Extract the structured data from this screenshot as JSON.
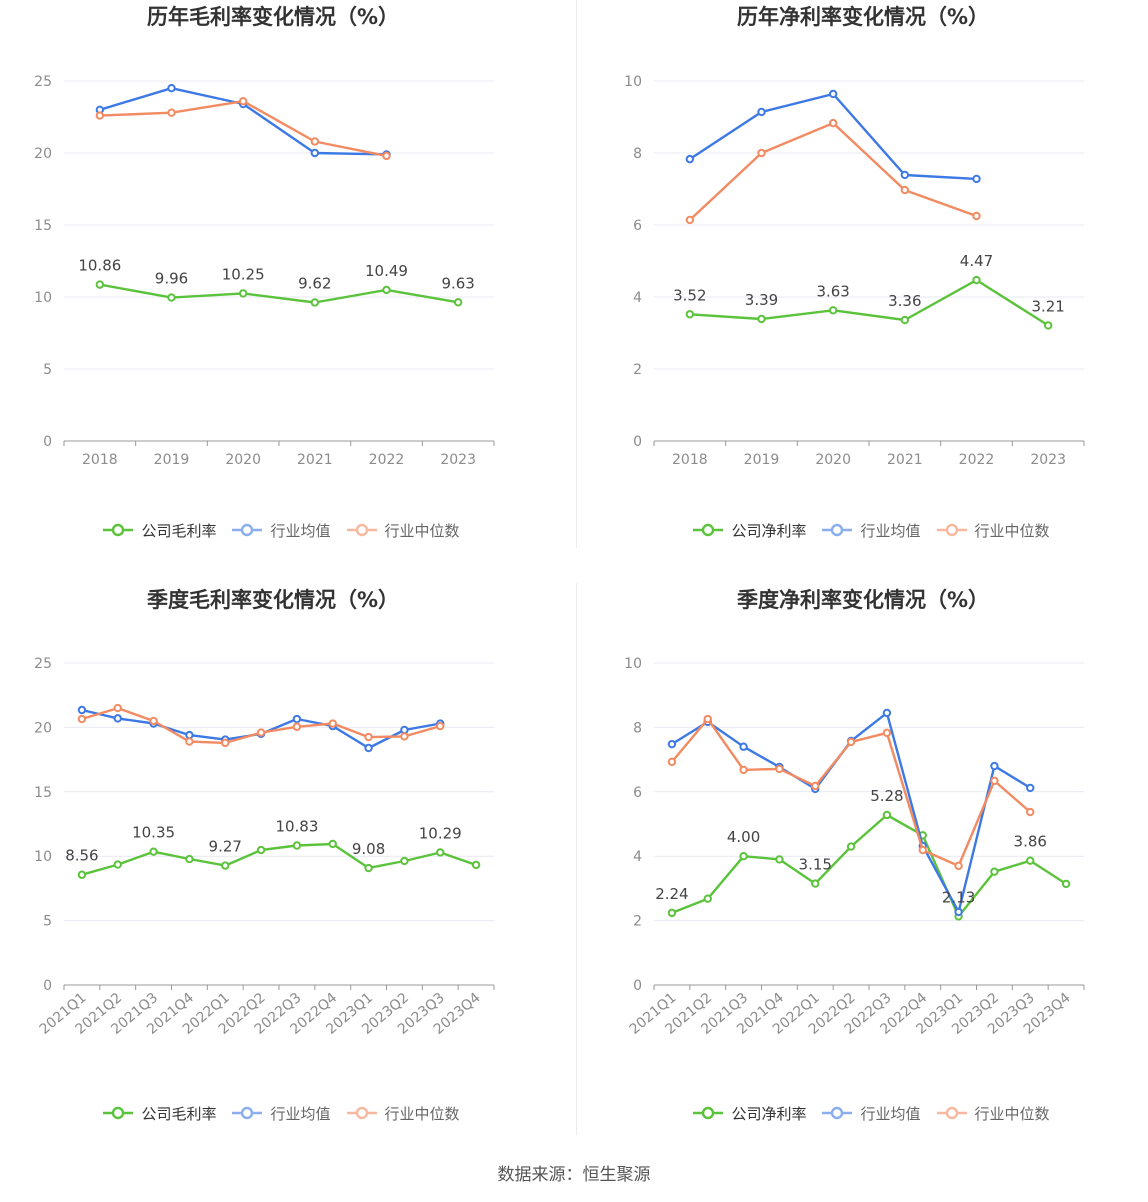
{
  "chart_data": [
    {
      "type": "line",
      "title": "历年毛利率变化情况（%）",
      "categories": [
        "2018",
        "2019",
        "2020",
        "2021",
        "2022",
        "2023"
      ],
      "ylim": [
        0,
        25
      ],
      "yticks": [
        0,
        5,
        10,
        15,
        20,
        25
      ],
      "grid": true,
      "legend_position": "bottom",
      "series": [
        {
          "name": "公司毛利率",
          "color": "#5bc33b",
          "values": [
            10.86,
            9.96,
            10.25,
            9.62,
            10.49,
            9.63
          ],
          "labels": [
            "10.86",
            "9.96",
            "10.25",
            "9.62",
            "10.49",
            "9.63"
          ]
        },
        {
          "name": "行业均值",
          "color": "#3d79e5",
          "values": [
            23.0,
            24.5,
            23.4,
            20.0,
            19.9,
            null
          ]
        },
        {
          "name": "行业中位数",
          "color": "#f28a62",
          "values": [
            22.6,
            22.8,
            23.6,
            20.8,
            19.8,
            null
          ]
        }
      ]
    },
    {
      "type": "line",
      "title": "历年净利率变化情况（%）",
      "categories": [
        "2018",
        "2019",
        "2020",
        "2021",
        "2022",
        "2023"
      ],
      "ylim": [
        0,
        10
      ],
      "yticks": [
        0,
        2,
        4,
        6,
        8,
        10
      ],
      "grid": true,
      "legend_position": "bottom",
      "series": [
        {
          "name": "公司净利率",
          "color": "#5bc33b",
          "values": [
            3.52,
            3.39,
            3.63,
            3.36,
            4.47,
            3.21
          ],
          "labels": [
            "3.52",
            "3.39",
            "3.63",
            "3.36",
            "4.47",
            "3.21"
          ]
        },
        {
          "name": "行业均值",
          "color": "#3d79e5",
          "values": [
            7.83,
            9.14,
            9.64,
            7.39,
            7.28,
            null
          ]
        },
        {
          "name": "行业中位数",
          "color": "#f28a62",
          "values": [
            6.14,
            8.0,
            8.83,
            6.97,
            6.25,
            null
          ]
        }
      ]
    },
    {
      "type": "line",
      "title": "季度毛利率变化情况（%）",
      "categories": [
        "2021Q1",
        "2021Q2",
        "2021Q3",
        "2021Q4",
        "2022Q1",
        "2022Q2",
        "2022Q3",
        "2022Q4",
        "2023Q1",
        "2023Q2",
        "2023Q3",
        "2023Q4"
      ],
      "ylim": [
        0,
        25
      ],
      "yticks": [
        0,
        5,
        10,
        15,
        20,
        25
      ],
      "grid": true,
      "legend_position": "bottom",
      "series": [
        {
          "name": "公司毛利率",
          "color": "#5bc33b",
          "values": [
            8.56,
            9.35,
            10.35,
            9.78,
            9.27,
            10.48,
            10.83,
            10.95,
            9.08,
            9.63,
            10.29,
            9.32
          ],
          "labels": [
            "8.56",
            null,
            "10.35",
            null,
            "9.27",
            null,
            "10.83",
            null,
            "9.08",
            null,
            "10.29",
            null
          ]
        },
        {
          "name": "行业均值",
          "color": "#3d79e5",
          "values": [
            21.35,
            20.7,
            20.3,
            19.4,
            19.05,
            19.5,
            20.65,
            20.1,
            18.4,
            19.8,
            20.3,
            null
          ]
        },
        {
          "name": "行业中位数",
          "color": "#f28a62",
          "values": [
            20.65,
            21.5,
            20.5,
            18.9,
            18.8,
            19.6,
            20.05,
            20.3,
            19.25,
            19.3,
            20.1,
            null
          ]
        }
      ]
    },
    {
      "type": "line",
      "title": "季度净利率变化情况（%）",
      "categories": [
        "2021Q1",
        "2021Q2",
        "2021Q3",
        "2021Q4",
        "2022Q1",
        "2022Q2",
        "2022Q3",
        "2022Q4",
        "2023Q1",
        "2023Q2",
        "2023Q3",
        "2023Q4"
      ],
      "ylim": [
        0,
        10
      ],
      "yticks": [
        0,
        2,
        4,
        6,
        8,
        10
      ],
      "grid": true,
      "legend_position": "bottom",
      "series": [
        {
          "name": "公司净利率",
          "color": "#5bc33b",
          "values": [
            2.24,
            2.68,
            4.0,
            3.9,
            3.15,
            4.3,
            5.28,
            4.65,
            2.13,
            3.52,
            3.86,
            3.14
          ],
          "labels": [
            "2.24",
            null,
            "4.00",
            null,
            "3.15",
            null,
            "5.28",
            null,
            "2.13",
            null,
            "3.86",
            null
          ]
        },
        {
          "name": "行业均值",
          "color": "#3d79e5",
          "values": [
            7.48,
            8.17,
            7.4,
            6.77,
            6.09,
            7.58,
            8.45,
            4.32,
            2.27,
            6.8,
            6.12,
            null
          ]
        },
        {
          "name": "行业中位数",
          "color": "#f28a62",
          "values": [
            6.93,
            8.26,
            6.68,
            6.71,
            6.18,
            7.55,
            7.83,
            4.19,
            3.7,
            6.34,
            5.37,
            null
          ]
        }
      ]
    }
  ],
  "source": "数据来源：恒生聚源"
}
